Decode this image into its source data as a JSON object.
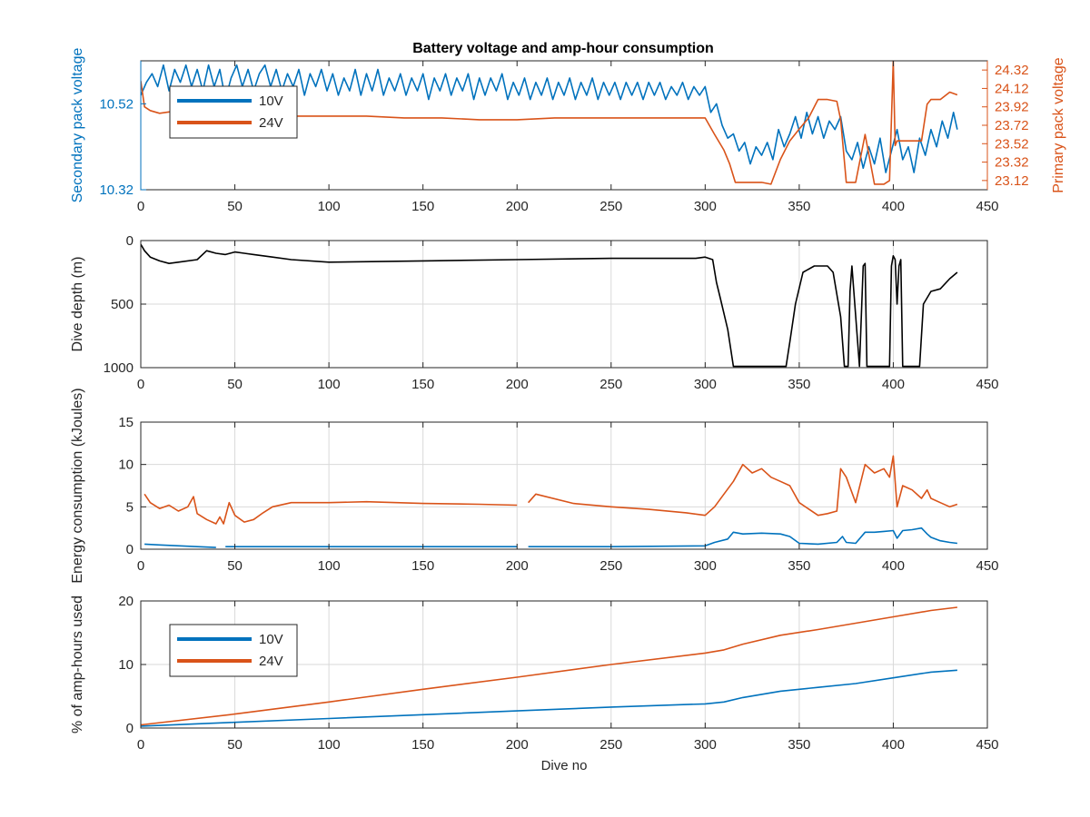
{
  "figure": {
    "title": "Battery voltage and amp-hour consumption",
    "colors": {
      "blue": "#0072BD",
      "orange": "#D95319",
      "black": "#000000",
      "grid": "#d9d9d9"
    }
  },
  "chart_data": [
    {
      "type": "line",
      "title": "Battery voltage and amp-hour consumption",
      "xlabel": "",
      "ylabel": "Secondary pack voltage",
      "ylabel_right": "Primary pack voltage",
      "xlim": [
        0,
        450
      ],
      "ylim": [
        10.32,
        10.62
      ],
      "ylim_right": [
        23.02,
        24.42
      ],
      "xticks": [
        0,
        50,
        100,
        150,
        200,
        250,
        300,
        350,
        400,
        450
      ],
      "yticks": [
        10.32,
        10.52
      ],
      "yticks_right": [
        23.12,
        23.32,
        23.52,
        23.72,
        23.92,
        24.12,
        24.32
      ],
      "grid": false,
      "legend": {
        "position": "top-left",
        "entries": [
          "10V",
          "24V"
        ]
      },
      "series": [
        {
          "name": "10V",
          "axis": "left",
          "color": "#0072BD",
          "x": [
            0,
            3,
            6,
            9,
            12,
            15,
            18,
            21,
            24,
            27,
            30,
            33,
            36,
            39,
            42,
            45,
            48,
            51,
            54,
            57,
            60,
            63,
            66,
            69,
            72,
            75,
            78,
            81,
            84,
            87,
            90,
            93,
            96,
            99,
            102,
            105,
            108,
            111,
            114,
            117,
            120,
            123,
            126,
            129,
            132,
            135,
            138,
            141,
            144,
            147,
            150,
            153,
            156,
            159,
            162,
            165,
            168,
            171,
            174,
            177,
            180,
            183,
            186,
            189,
            192,
            195,
            198,
            201,
            204,
            207,
            210,
            213,
            216,
            219,
            222,
            225,
            228,
            231,
            234,
            237,
            240,
            243,
            246,
            249,
            252,
            255,
            258,
            261,
            264,
            267,
            270,
            273,
            276,
            279,
            282,
            285,
            288,
            291,
            294,
            297,
            300,
            303,
            306,
            309,
            312,
            315,
            318,
            321,
            324,
            327,
            330,
            333,
            336,
            339,
            342,
            345,
            348,
            351,
            354,
            357,
            360,
            363,
            366,
            369,
            372,
            375,
            378,
            381,
            384,
            387,
            390,
            393,
            396,
            399,
            402,
            405,
            408,
            411,
            414,
            417,
            420,
            423,
            426,
            429,
            432,
            434
          ],
          "values": [
            10.54,
            10.57,
            10.59,
            10.56,
            10.61,
            10.55,
            10.6,
            10.57,
            10.61,
            10.56,
            10.6,
            10.55,
            10.61,
            10.56,
            10.6,
            10.53,
            10.58,
            10.61,
            10.56,
            10.6,
            10.55,
            10.59,
            10.61,
            10.56,
            10.6,
            10.55,
            10.59,
            10.56,
            10.6,
            10.54,
            10.59,
            10.56,
            10.6,
            10.55,
            10.59,
            10.54,
            10.58,
            10.55,
            10.6,
            10.54,
            10.59,
            10.55,
            10.6,
            10.54,
            10.58,
            10.55,
            10.59,
            10.54,
            10.58,
            10.55,
            10.59,
            10.53,
            10.58,
            10.55,
            10.59,
            10.54,
            10.58,
            10.55,
            10.59,
            10.53,
            10.58,
            10.54,
            10.58,
            10.55,
            10.59,
            10.53,
            10.57,
            10.54,
            10.58,
            10.53,
            10.57,
            10.54,
            10.58,
            10.53,
            10.57,
            10.54,
            10.58,
            10.53,
            10.57,
            10.54,
            10.58,
            10.53,
            10.57,
            10.54,
            10.57,
            10.53,
            10.57,
            10.54,
            10.57,
            10.53,
            10.57,
            10.54,
            10.57,
            10.53,
            10.56,
            10.54,
            10.57,
            10.53,
            10.56,
            10.54,
            10.56,
            10.5,
            10.52,
            10.47,
            10.44,
            10.45,
            10.41,
            10.43,
            10.38,
            10.42,
            10.4,
            10.43,
            10.39,
            10.46,
            10.42,
            10.45,
            10.49,
            10.44,
            10.5,
            10.45,
            10.49,
            10.44,
            10.48,
            10.46,
            10.49,
            10.41,
            10.39,
            10.43,
            10.37,
            10.42,
            10.38,
            10.44,
            10.36,
            10.41,
            10.46,
            10.39,
            10.42,
            10.36,
            10.44,
            10.4,
            10.46,
            10.42,
            10.48,
            10.44,
            10.5,
            10.46
          ]
        },
        {
          "name": "24V",
          "axis": "right",
          "color": "#D95319",
          "x": [
            0,
            2,
            5,
            10,
            20,
            40,
            60,
            80,
            100,
            120,
            140,
            160,
            180,
            200,
            220,
            240,
            260,
            280,
            295,
            300,
            305,
            310,
            313,
            316,
            325,
            330,
            335,
            340,
            345,
            350,
            355,
            360,
            365,
            370,
            372,
            375,
            380,
            385,
            390,
            395,
            398,
            400,
            401,
            402,
            405,
            415,
            418,
            420,
            425,
            430,
            434
          ],
          "values": [
            24.2,
            23.92,
            23.88,
            23.85,
            23.88,
            23.85,
            23.86,
            23.82,
            23.82,
            23.82,
            23.8,
            23.8,
            23.78,
            23.78,
            23.8,
            23.8,
            23.8,
            23.8,
            23.8,
            23.8,
            23.62,
            23.45,
            23.3,
            23.1,
            23.1,
            23.1,
            23.08,
            23.35,
            23.55,
            23.68,
            23.8,
            24.0,
            24.0,
            23.98,
            23.78,
            23.1,
            23.1,
            23.62,
            23.08,
            23.08,
            23.12,
            24.42,
            23.5,
            23.55,
            23.55,
            23.55,
            23.95,
            24.0,
            24.0,
            24.08,
            24.05
          ]
        }
      ]
    },
    {
      "type": "line",
      "xlabel": "",
      "ylabel": "Dive depth (m)",
      "xlim": [
        0,
        450
      ],
      "ylim": [
        0,
        1000
      ],
      "y_reversed": true,
      "xticks": [
        0,
        50,
        100,
        150,
        200,
        250,
        300,
        350,
        400,
        450
      ],
      "yticks": [
        0,
        500,
        1000
      ],
      "grid": true,
      "series": [
        {
          "color": "#000000",
          "x": [
            0,
            2,
            5,
            10,
            15,
            20,
            30,
            35,
            40,
            45,
            50,
            55,
            60,
            70,
            80,
            100,
            150,
            200,
            250,
            295,
            300,
            304,
            306,
            308,
            312,
            315,
            330,
            343,
            345,
            348,
            352,
            358,
            365,
            368,
            372,
            374,
            376,
            377,
            378,
            379,
            382,
            384,
            385,
            386,
            388,
            390,
            392,
            395,
            398,
            399,
            400,
            401,
            402,
            403,
            404,
            405,
            410,
            414,
            416,
            420,
            425,
            430,
            434
          ],
          "values": [
            30,
            80,
            130,
            160,
            180,
            170,
            150,
            80,
            100,
            110,
            90,
            100,
            110,
            130,
            150,
            170,
            160,
            150,
            140,
            140,
            130,
            150,
            330,
            450,
            700,
            990,
            990,
            990,
            800,
            500,
            250,
            200,
            200,
            250,
            600,
            990,
            990,
            400,
            200,
            400,
            990,
            200,
            180,
            990,
            990,
            990,
            990,
            990,
            990,
            200,
            120,
            150,
            500,
            200,
            150,
            990,
            990,
            990,
            500,
            400,
            380,
            300,
            250
          ]
        }
      ]
    },
    {
      "type": "line",
      "xlabel": "",
      "ylabel": "Energy consumption (kJoules)",
      "xlim": [
        0,
        450
      ],
      "ylim": [
        0,
        15
      ],
      "xticks": [
        0,
        50,
        100,
        150,
        200,
        250,
        300,
        350,
        400,
        450
      ],
      "yticks": [
        0,
        5,
        10,
        15
      ],
      "grid": true,
      "series": [
        {
          "color": "#D95319",
          "x": [
            2,
            5,
            10,
            15,
            20,
            25,
            28,
            30,
            35,
            40,
            42,
            44,
            47,
            50,
            55,
            60,
            65,
            70,
            80,
            100,
            120,
            150,
            180,
            200,
            203,
            206,
            210,
            230,
            250,
            270,
            290,
            300,
            305,
            310,
            315,
            320,
            325,
            330,
            335,
            340,
            345,
            350,
            360,
            365,
            370,
            372,
            375,
            380,
            385,
            390,
            395,
            398,
            400,
            402,
            405,
            410,
            415,
            418,
            420,
            425,
            430,
            434
          ],
          "values": [
            6.5,
            5.5,
            4.8,
            5.2,
            4.5,
            5.0,
            6.2,
            4.2,
            3.5,
            3.0,
            3.8,
            3.0,
            5.5,
            4.0,
            3.2,
            3.5,
            4.3,
            5.0,
            5.5,
            5.5,
            5.6,
            5.4,
            5.3,
            5.2,
            null,
            5.5,
            6.5,
            5.4,
            5.0,
            4.7,
            4.3,
            4.0,
            5.0,
            6.5,
            8.0,
            10.0,
            9.0,
            9.5,
            8.5,
            8.0,
            7.5,
            5.5,
            4.0,
            4.2,
            4.5,
            9.5,
            8.5,
            5.5,
            10.0,
            9.0,
            9.5,
            8.5,
            11.0,
            5.0,
            7.5,
            7.0,
            6.0,
            7.0,
            6.0,
            5.5,
            5.0,
            5.3
          ]
        },
        {
          "color": "#0072BD",
          "x": [
            2,
            10,
            30,
            40,
            42,
            45,
            50,
            100,
            150,
            200,
            203,
            206,
            250,
            300,
            305,
            312,
            315,
            320,
            330,
            340,
            345,
            350,
            360,
            370,
            373,
            375,
            380,
            385,
            390,
            395,
            400,
            402,
            405,
            410,
            415,
            418,
            420,
            425,
            430,
            434
          ],
          "values": [
            0.6,
            0.5,
            0.3,
            0.2,
            null,
            0.3,
            0.3,
            0.3,
            0.3,
            0.3,
            null,
            0.3,
            0.3,
            0.4,
            0.8,
            1.2,
            2.0,
            1.8,
            1.9,
            1.8,
            1.5,
            0.7,
            0.6,
            0.8,
            1.5,
            0.8,
            0.7,
            2.0,
            2.0,
            2.1,
            2.2,
            1.3,
            2.2,
            2.3,
            2.5,
            1.8,
            1.4,
            1.0,
            0.8,
            0.7
          ]
        }
      ]
    },
    {
      "type": "line",
      "xlabel": "Dive no",
      "ylabel": "% of amp-hours used",
      "xlim": [
        0,
        450
      ],
      "ylim": [
        0,
        20
      ],
      "xticks": [
        0,
        50,
        100,
        150,
        200,
        250,
        300,
        350,
        400,
        450
      ],
      "yticks": [
        0,
        10,
        20
      ],
      "grid": true,
      "legend": {
        "position": "top-left",
        "entries": [
          "10V",
          "24V"
        ]
      },
      "series": [
        {
          "name": "10V",
          "color": "#0072BD",
          "x": [
            0,
            50,
            100,
            150,
            200,
            250,
            300,
            310,
            320,
            340,
            360,
            380,
            400,
            420,
            434
          ],
          "values": [
            0.3,
            0.9,
            1.5,
            2.1,
            2.7,
            3.3,
            3.8,
            4.1,
            4.8,
            5.8,
            6.4,
            7.0,
            7.9,
            8.8,
            9.1
          ]
        },
        {
          "name": "24V",
          "color": "#D95319",
          "x": [
            0,
            50,
            100,
            150,
            200,
            250,
            300,
            310,
            320,
            340,
            360,
            380,
            400,
            420,
            434
          ],
          "values": [
            0.5,
            2.2,
            4.1,
            6.1,
            8.0,
            10.0,
            11.8,
            12.3,
            13.2,
            14.6,
            15.5,
            16.5,
            17.5,
            18.5,
            19.0
          ]
        }
      ]
    }
  ]
}
